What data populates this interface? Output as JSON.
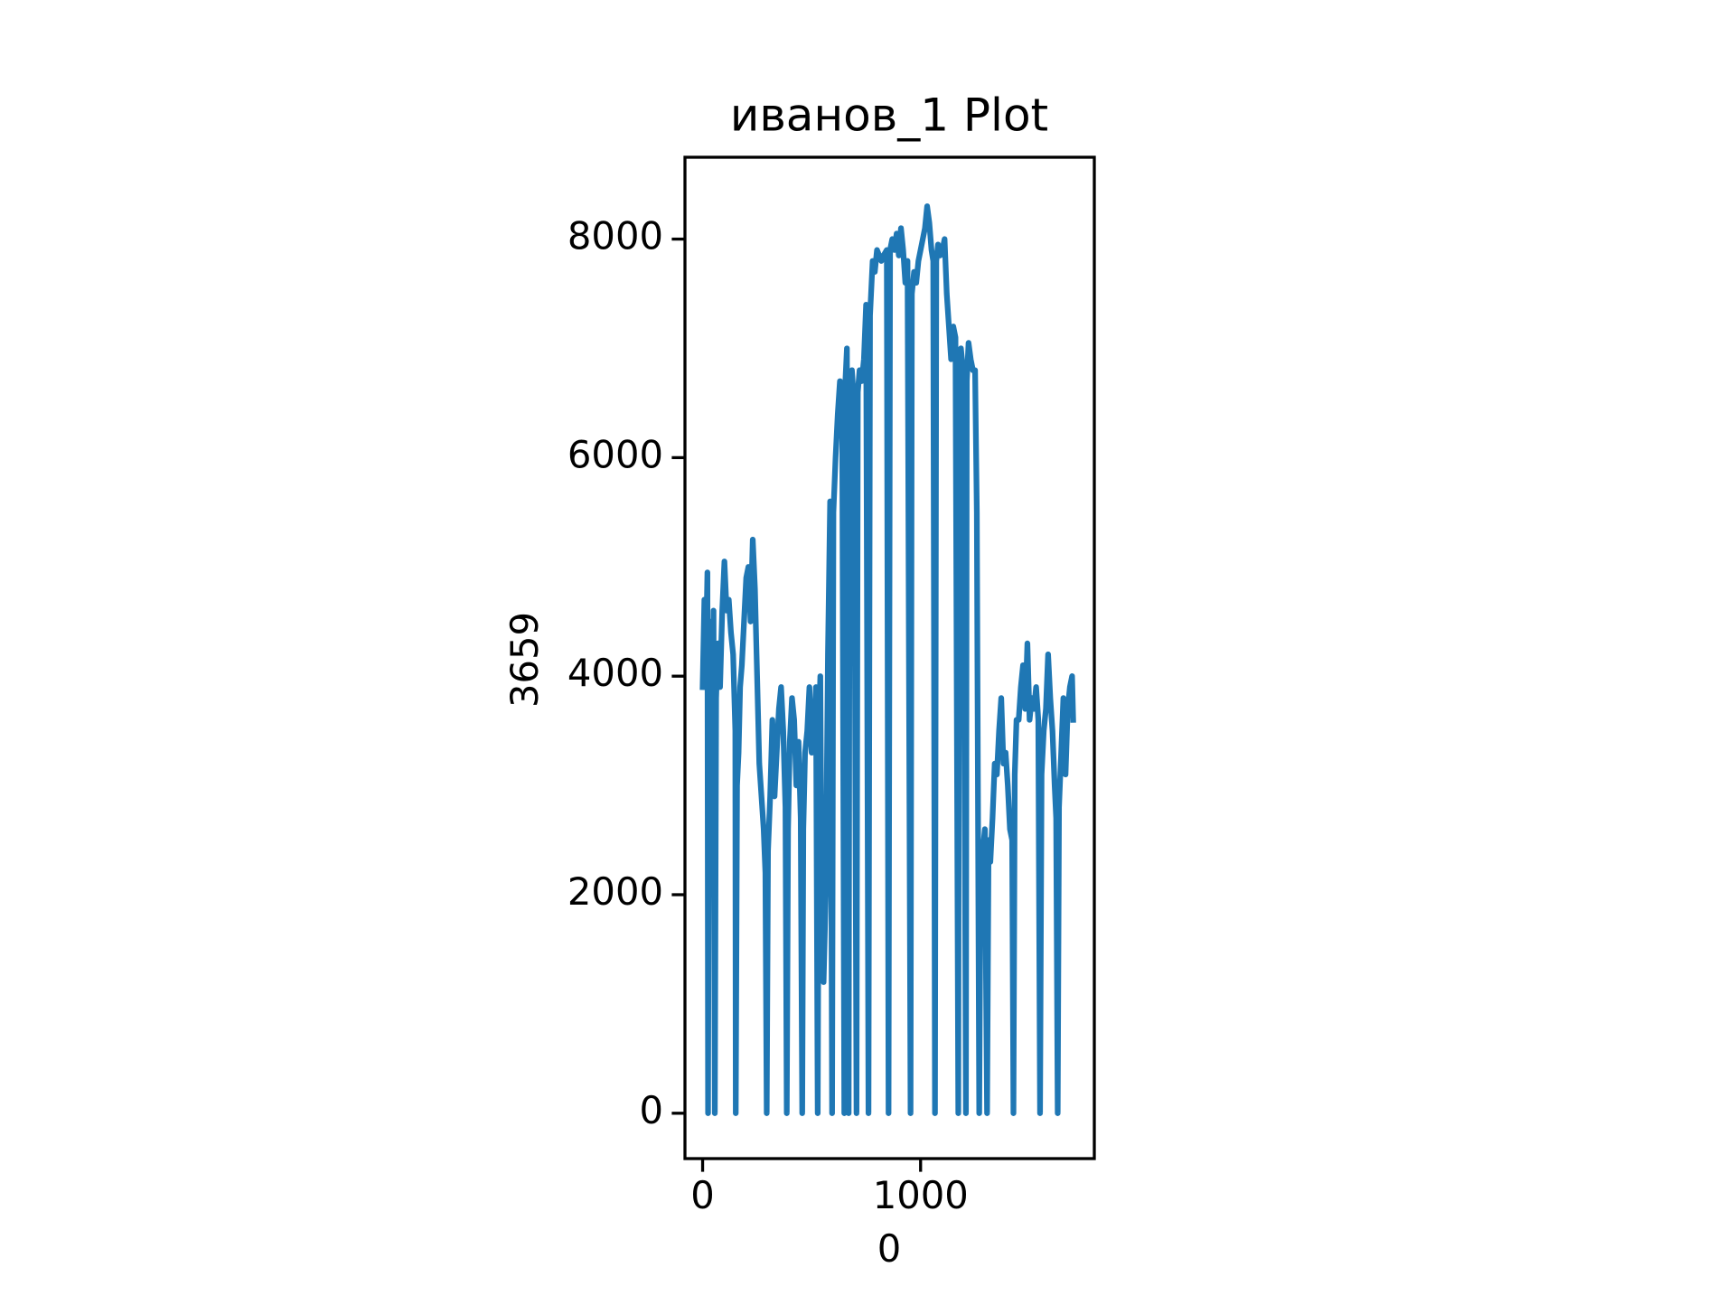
{
  "chart_data": {
    "type": "line",
    "title": "иванов_1 Plot",
    "x_label": "0",
    "y_label": "3659",
    "x": [
      0,
      8,
      15,
      22,
      25,
      30,
      38,
      45,
      50,
      56,
      62,
      70,
      80,
      90,
      100,
      110,
      120,
      130,
      140,
      150,
      152,
      158,
      165,
      172,
      180,
      190,
      200,
      210,
      220,
      230,
      240,
      250,
      260,
      270,
      280,
      288,
      294,
      300,
      310,
      320,
      330,
      340,
      350,
      360,
      370,
      380,
      386,
      392,
      400,
      410,
      420,
      430,
      440,
      450,
      457,
      462,
      470,
      480,
      490,
      500,
      510,
      520,
      528,
      534,
      540,
      548,
      555,
      565,
      575,
      585,
      594,
      600,
      610,
      620,
      630,
      640,
      650,
      655,
      662,
      670,
      675,
      685,
      695,
      706,
      712,
      720,
      730,
      740,
      750,
      761,
      768,
      780,
      790,
      800,
      810,
      820,
      830,
      845,
      853,
      860,
      870,
      880,
      890,
      900,
      910,
      920,
      930,
      940,
      954,
      960,
      970,
      980,
      990,
      1000,
      1010,
      1020,
      1030,
      1040,
      1050,
      1058,
      1066,
      1072,
      1080,
      1090,
      1100,
      1110,
      1120,
      1130,
      1140,
      1150,
      1160,
      1173,
      1178,
      1185,
      1195,
      1208,
      1212,
      1220,
      1230,
      1240,
      1250,
      1258,
      1269,
      1275,
      1285,
      1295,
      1305,
      1312,
      1320,
      1330,
      1340,
      1350,
      1360,
      1370,
      1380,
      1390,
      1400,
      1410,
      1420,
      1426,
      1432,
      1440,
      1450,
      1460,
      1470,
      1480,
      1490,
      1500,
      1510,
      1520,
      1530,
      1540,
      1548,
      1555,
      1565,
      1575,
      1585,
      1595,
      1605,
      1615,
      1622,
      1629,
      1635,
      1645,
      1655,
      1665,
      1675,
      1685,
      1695,
      1700
    ],
    "series": [
      {
        "name": "3659",
        "color": "#1f77b4",
        "values": [
          3900,
          4700,
          4200,
          4950,
          0,
          4000,
          4500,
          3800,
          4600,
          0,
          3800,
          4300,
          3900,
          4600,
          5050,
          4600,
          4700,
          4400,
          4200,
          3500,
          0,
          3000,
          3300,
          3900,
          4100,
          4500,
          4900,
          5000,
          4500,
          5250,
          4800,
          4000,
          3200,
          2900,
          2600,
          2200,
          0,
          2400,
          2900,
          3600,
          2900,
          3300,
          3700,
          3900,
          3500,
          2800,
          0,
          2600,
          3400,
          3800,
          3600,
          3000,
          3400,
          2700,
          0,
          2600,
          3300,
          3500,
          3900,
          3300,
          3400,
          3900,
          0,
          3600,
          4000,
          1300,
          1200,
          2000,
          4200,
          5600,
          0,
          5500,
          6000,
          6400,
          6700,
          6500,
          0,
          6700,
          7000,
          0,
          6600,
          6800,
          6500,
          0,
          6600,
          6800,
          6700,
          6900,
          7400,
          0,
          7300,
          7800,
          7700,
          7900,
          7850,
          7800,
          7850,
          7900,
          0,
          7900,
          8000,
          7900,
          8050,
          7850,
          8100,
          7900,
          7600,
          7800,
          0,
          7500,
          7700,
          7600,
          7800,
          7900,
          8000,
          8100,
          8300,
          8150,
          7900,
          7800,
          0,
          7800,
          7950,
          7850,
          7900,
          8000,
          7500,
          7200,
          6900,
          7200,
          7100,
          0,
          6900,
          7000,
          6800,
          0,
          6700,
          7050,
          6900,
          6800,
          6800,
          5500,
          0,
          2200,
          2400,
          2600,
          0,
          2500,
          2300,
          2700,
          3200,
          3100,
          3500,
          3800,
          3200,
          3300,
          3000,
          2600,
          2500,
          0,
          3100,
          3600,
          3600,
          3900,
          4100,
          3700,
          4300,
          3600,
          3800,
          3700,
          3900,
          3600,
          0,
          3100,
          3500,
          3700,
          4200,
          3800,
          3500,
          3000,
          2700,
          0,
          2800,
          3300,
          3800,
          3100,
          3700,
          3900,
          4000,
          3600
        ]
      }
    ],
    "xlim": [
      -81,
      1797
    ],
    "ylim": [
      -415,
      8749
    ],
    "xticks": [
      0,
      1000
    ],
    "yticks": [
      0,
      2000,
      4000,
      6000,
      8000
    ],
    "grid": false
  }
}
